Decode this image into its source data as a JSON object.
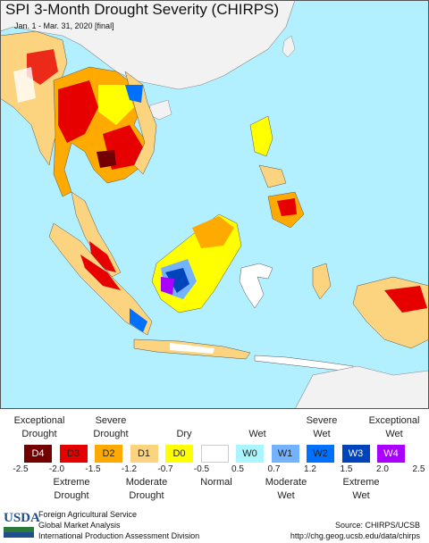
{
  "map": {
    "title": "SPI 3-Month Drought Severity (CHIRPS)",
    "subtitle": "Jan. 1 - Mar. 31, 2020 [final]",
    "ocean_color": "#b3f0ff",
    "land_color": "#f2f2f2"
  },
  "legend": {
    "top_labels": {
      "exceptional_drought": [
        "Exceptional",
        "Drought"
      ],
      "severe_drought": [
        "Severe",
        "Drought"
      ],
      "dry": "Dry",
      "wet": "Wet",
      "severe_wet": [
        "Severe",
        "Wet"
      ],
      "exceptional_wet": [
        "Exceptional",
        "Wet"
      ]
    },
    "classes": [
      {
        "code": "D4",
        "color": "#730000"
      },
      {
        "code": "D3",
        "color": "#e60000"
      },
      {
        "code": "D2",
        "color": "#ffaa00"
      },
      {
        "code": "D1",
        "color": "#fcd37f"
      },
      {
        "code": "D0",
        "color": "#ffff00"
      },
      {
        "code": "",
        "color": "#ffffff"
      },
      {
        "code": "W0",
        "color": "#aaf5ff"
      },
      {
        "code": "W1",
        "color": "#73b2ff"
      },
      {
        "code": "W2",
        "color": "#0070ff"
      },
      {
        "code": "W3",
        "color": "#0044bb"
      },
      {
        "code": "W4",
        "color": "#aa00ff"
      }
    ],
    "ticks": [
      "-2.5",
      "-2.0",
      "-1.5",
      "-1.2",
      "-0.7",
      "-0.5",
      "0.5",
      "0.7",
      "1.2",
      "1.5",
      "2.0",
      "2.5"
    ],
    "bottom_labels": {
      "extreme_drought": [
        "Extreme",
        "Drought"
      ],
      "moderate_drought": [
        "Moderate",
        "Drought"
      ],
      "normal": "Normal",
      "moderate_wet": [
        "Moderate",
        "Wet"
      ],
      "extreme_wet": [
        "Extreme",
        "Wet"
      ]
    }
  },
  "footer": {
    "logo": "USDA",
    "org_lines": [
      "Foreign Agricultural Service",
      "Global Market Analysis",
      "International Production Assessment Division"
    ],
    "source": "Source: CHIRPS/UCSB",
    "url": "http://chg.geog.ucsb.edu/data/chirps"
  }
}
